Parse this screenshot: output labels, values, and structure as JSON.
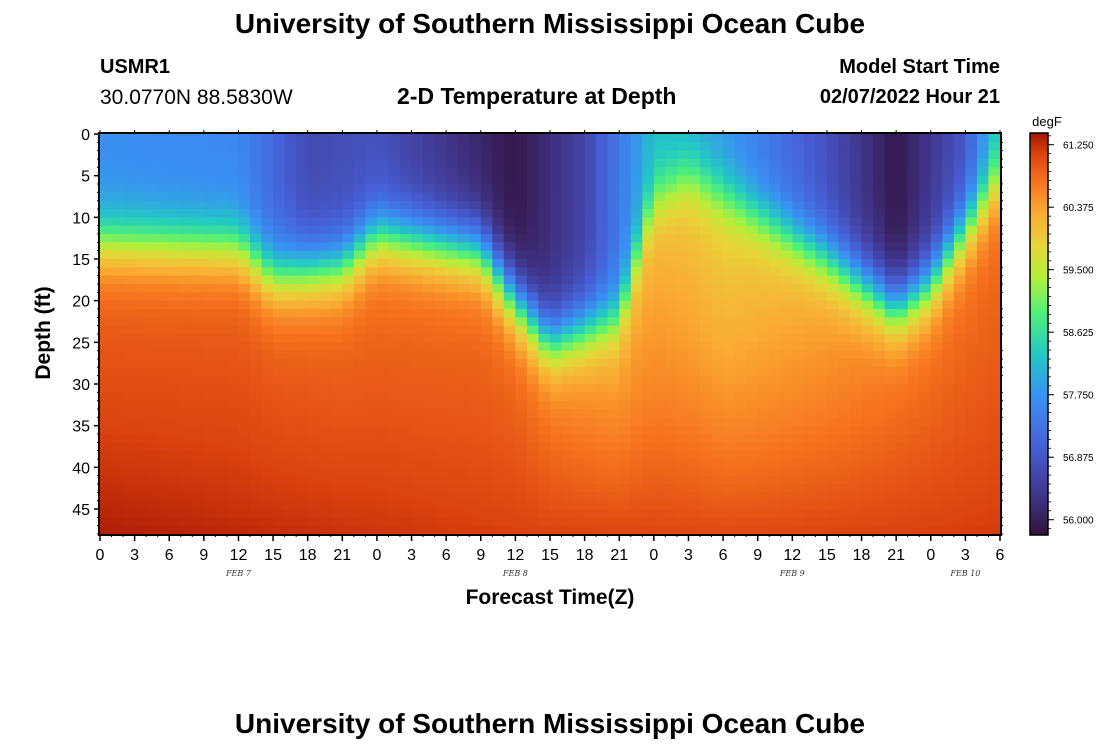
{
  "header": {
    "title": "University of Southern Mississippi Ocean Cube",
    "station_id": "USMR1",
    "coordinates": "30.0770N  88.5830W",
    "subtitle": "2-D Temperature at Depth",
    "model_start_label": "Model Start Time",
    "model_start_value": "02/07/2022 Hour 21"
  },
  "footer": {
    "title": "University of Southern Mississippi Ocean Cube"
  },
  "chart_data": {
    "type": "heatmap",
    "title": "2-D Temperature at Depth",
    "xlabel": "Forecast Time(Z)",
    "ylabel": "Depth (ft)",
    "colorbar_unit": "degF",
    "colorbar_ticks": [
      "61.250",
      "60.375",
      "59.500",
      "58.625",
      "57.750",
      "56.875",
      "56.000"
    ],
    "colorbar_range": [
      55.8,
      61.4
    ],
    "x_range_hours": [
      0,
      78
    ],
    "y_range_ft": [
      0,
      48
    ],
    "x_tick_labels": [
      "0",
      "3",
      "6",
      "9",
      "12",
      "15",
      "18",
      "21",
      "0",
      "3",
      "6",
      "9",
      "12",
      "15",
      "18",
      "21",
      "0",
      "3",
      "6",
      "9",
      "12",
      "15",
      "18",
      "21",
      "0",
      "3",
      "6"
    ],
    "y_tick_values": [
      0,
      5,
      10,
      15,
      20,
      25,
      30,
      35,
      40,
      45
    ],
    "date_labels": [
      {
        "label": "FEB 7",
        "hour": 12
      },
      {
        "label": "FEB 8",
        "hour": 36
      },
      {
        "label": "FEB 9",
        "hour": 60
      },
      {
        "label": "FEB 10",
        "hour": 75
      }
    ],
    "thermocline_depth_ft": [
      {
        "hour": 0,
        "depth": 13
      },
      {
        "hour": 12,
        "depth": 13.5
      },
      {
        "hour": 15,
        "depth": 17
      },
      {
        "hour": 21,
        "depth": 16
      },
      {
        "hour": 24,
        "depth": 12
      },
      {
        "hour": 33,
        "depth": 14
      },
      {
        "hour": 36,
        "depth": 20
      },
      {
        "hour": 39,
        "depth": 25
      },
      {
        "hour": 45,
        "depth": 22
      },
      {
        "hour": 48,
        "depth": 8
      },
      {
        "hour": 51,
        "depth": 5
      },
      {
        "hour": 57,
        "depth": 10
      },
      {
        "hour": 63,
        "depth": 15
      },
      {
        "hour": 69,
        "depth": 21
      },
      {
        "hour": 72,
        "depth": 18
      },
      {
        "hour": 78,
        "depth": 5
      }
    ],
    "surface_temp_degF": [
      {
        "hour": 0,
        "temp": 57.7
      },
      {
        "hour": 12,
        "temp": 57.6
      },
      {
        "hour": 18,
        "temp": 56.7
      },
      {
        "hour": 24,
        "temp": 56.8
      },
      {
        "hour": 36,
        "temp": 55.9
      },
      {
        "hour": 42,
        "temp": 56.6
      },
      {
        "hour": 48,
        "temp": 58.2
      },
      {
        "hour": 54,
        "temp": 57.8
      },
      {
        "hour": 63,
        "temp": 56.8
      },
      {
        "hour": 69,
        "temp": 55.9
      },
      {
        "hour": 75,
        "temp": 56.9
      },
      {
        "hour": 78,
        "temp": 58.4
      }
    ],
    "mid_temp_degF": [
      {
        "hour": 0,
        "temp": 60.9
      },
      {
        "hour": 12,
        "temp": 60.9
      },
      {
        "hour": 24,
        "temp": 60.8
      },
      {
        "hour": 36,
        "temp": 60.8
      },
      {
        "hour": 45,
        "temp": 60.4
      },
      {
        "hour": 54,
        "temp": 60.0
      },
      {
        "hour": 63,
        "temp": 60.4
      },
      {
        "hour": 69,
        "temp": 60.7
      },
      {
        "hour": 78,
        "temp": 60.8
      }
    ],
    "bottom_temp_degF": [
      {
        "hour": 0,
        "temp": 61.35
      },
      {
        "hour": 15,
        "temp": 61.25
      },
      {
        "hour": 40,
        "temp": 61.1
      },
      {
        "hour": 55,
        "temp": 61.05
      },
      {
        "hour": 78,
        "temp": 61.15
      }
    ]
  }
}
